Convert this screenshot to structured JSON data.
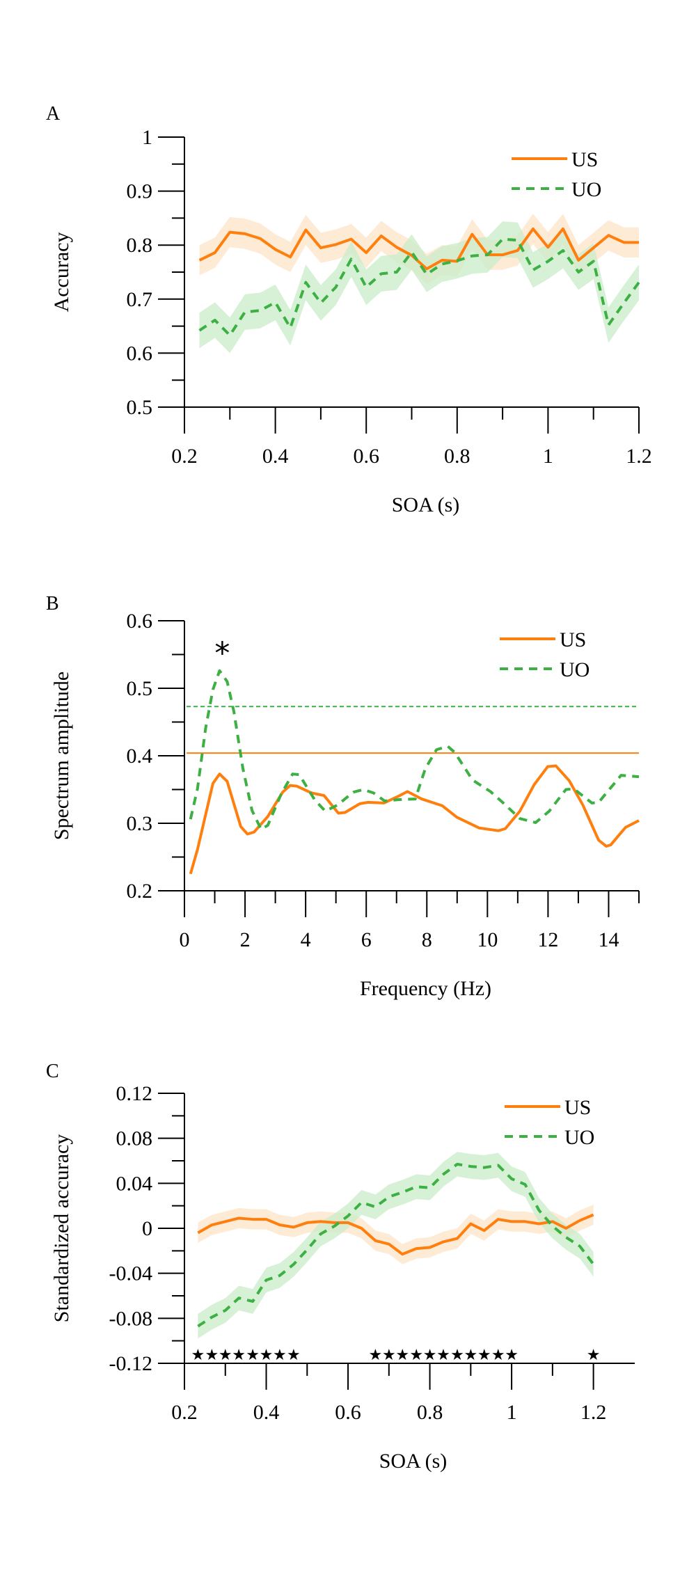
{
  "colors": {
    "US": "#ff7f0e",
    "UO": "#3cb043",
    "US_band": "#fde4c8",
    "UO_band": "#c9ecc9"
  },
  "chart_data": [
    {
      "panel": "A",
      "type": "line",
      "title": "",
      "xlabel": "SOA (s)",
      "ylabel": "Accuracy",
      "xlim": [
        0.2,
        1.2
      ],
      "ylim": [
        0.5,
        1.0
      ],
      "xticks": [
        0.2,
        0.3,
        0.4,
        0.5,
        0.6,
        0.7,
        0.8,
        0.9,
        1.0,
        1.1,
        1.2
      ],
      "xtick_labels": [
        "0.2",
        "",
        "0.4",
        "",
        "0.6",
        "",
        "0.8",
        "",
        "1",
        "",
        "1.2"
      ],
      "yticks": [
        0.5,
        0.55,
        0.6,
        0.65,
        0.7,
        0.75,
        0.8,
        0.85,
        0.9,
        0.95,
        1.0
      ],
      "ytick_labels": [
        "0.5",
        "",
        "0.6",
        "",
        "0.7",
        "",
        "0.8",
        "",
        "0.9",
        "",
        "1"
      ],
      "legend": {
        "position": "top-right",
        "entries": [
          "US",
          "UO"
        ]
      },
      "grid": false,
      "x": [
        0.233,
        0.267,
        0.3,
        0.333,
        0.367,
        0.4,
        0.433,
        0.467,
        0.5,
        0.533,
        0.567,
        0.6,
        0.633,
        0.667,
        0.7,
        0.733,
        0.767,
        0.8,
        0.833,
        0.867,
        0.9,
        0.933,
        0.967,
        1.0,
        1.033,
        1.067,
        1.1,
        1.133,
        1.167,
        1.2
      ],
      "series": [
        {
          "name": "US",
          "style": "solid",
          "band_halfwidth": 0.028,
          "values": [
            0.772,
            0.786,
            0.824,
            0.821,
            0.812,
            0.792,
            0.778,
            0.828,
            0.795,
            0.801,
            0.811,
            0.786,
            0.817,
            0.796,
            0.781,
            0.756,
            0.772,
            0.77,
            0.82,
            0.782,
            0.782,
            0.79,
            0.83,
            0.796,
            0.83,
            0.772,
            0.795,
            0.818,
            0.805,
            0.805
          ]
        },
        {
          "name": "UO",
          "style": "dashed",
          "band_halfwidth": 0.033,
          "values": [
            0.642,
            0.661,
            0.633,
            0.676,
            0.679,
            0.694,
            0.647,
            0.731,
            0.693,
            0.722,
            0.774,
            0.722,
            0.747,
            0.75,
            0.787,
            0.746,
            0.765,
            0.771,
            0.78,
            0.782,
            0.811,
            0.809,
            0.754,
            0.77,
            0.79,
            0.75,
            0.77,
            0.652,
            0.693,
            0.731
          ]
        }
      ]
    },
    {
      "panel": "B",
      "type": "line",
      "title": "",
      "xlabel": "Frequency (Hz)",
      "ylabel": "Spectrum amplitude",
      "xlim": [
        0,
        15
      ],
      "ylim": [
        0.2,
        0.6
      ],
      "xticks": [
        0,
        1,
        2,
        3,
        4,
        5,
        6,
        7,
        8,
        9,
        10,
        11,
        12,
        13,
        14,
        15
      ],
      "xtick_labels": [
        "0",
        "",
        "2",
        "",
        "4",
        "",
        "6",
        "",
        "8",
        "",
        "10",
        "",
        "12",
        "",
        "14",
        ""
      ],
      "yticks": [
        0.2,
        0.25,
        0.3,
        0.35,
        0.4,
        0.45,
        0.5,
        0.55,
        0.6
      ],
      "ytick_labels": [
        "0.2",
        "",
        "0.3",
        "",
        "0.4",
        "",
        "0.5",
        "",
        "0.6"
      ],
      "legend": {
        "position": "top-right",
        "entries": [
          "US",
          "UO"
        ]
      },
      "grid": false,
      "annotations": [
        {
          "text": "*",
          "x": 1.25,
          "y": 0.555
        }
      ],
      "thresholds": [
        {
          "name": "US",
          "value": 0.404,
          "style": "solid"
        },
        {
          "name": "UO",
          "value": 0.473,
          "style": "dotted"
        }
      ],
      "series": [
        {
          "name": "US",
          "style": "solid",
          "x": [
            0.2,
            0.43,
            0.94,
            1.16,
            1.41,
            1.86,
            2.08,
            2.3,
            2.75,
            3.24,
            3.49,
            3.71,
            4.19,
            4.61,
            5.08,
            5.3,
            5.79,
            6.05,
            6.58,
            7.06,
            7.36,
            7.83,
            8.51,
            8.99,
            9.73,
            10.36,
            10.59,
            11.07,
            11.54,
            11.99,
            12.26,
            12.7,
            13.15,
            13.67,
            13.92,
            14.07,
            14.56,
            15.0
          ],
          "values": [
            0.225,
            0.261,
            0.359,
            0.373,
            0.362,
            0.295,
            0.284,
            0.287,
            0.31,
            0.346,
            0.356,
            0.355,
            0.345,
            0.341,
            0.315,
            0.316,
            0.329,
            0.331,
            0.33,
            0.34,
            0.347,
            0.336,
            0.326,
            0.309,
            0.293,
            0.289,
            0.292,
            0.318,
            0.357,
            0.384,
            0.385,
            0.363,
            0.327,
            0.275,
            0.266,
            0.268,
            0.294,
            0.304
          ]
        },
        {
          "name": "UO",
          "style": "dashed",
          "x": [
            0.2,
            0.43,
            0.7,
            0.94,
            1.16,
            1.41,
            1.63,
            1.93,
            2.23,
            2.53,
            2.75,
            3.19,
            3.57,
            3.79,
            4.31,
            4.65,
            5.05,
            5.57,
            5.9,
            6.24,
            6.61,
            7.06,
            7.62,
            7.95,
            8.32,
            8.69,
            8.92,
            9.51,
            10.1,
            10.55,
            11.07,
            11.59,
            12.04,
            12.59,
            12.85,
            13.45,
            13.67,
            14.41,
            15.0
          ],
          "values": [
            0.306,
            0.351,
            0.441,
            0.498,
            0.526,
            0.51,
            0.466,
            0.381,
            0.319,
            0.291,
            0.297,
            0.343,
            0.373,
            0.372,
            0.334,
            0.318,
            0.327,
            0.346,
            0.35,
            0.345,
            0.333,
            0.335,
            0.336,
            0.381,
            0.409,
            0.414,
            0.405,
            0.364,
            0.347,
            0.329,
            0.307,
            0.301,
            0.318,
            0.35,
            0.351,
            0.33,
            0.331,
            0.371,
            0.369
          ]
        }
      ]
    },
    {
      "panel": "C",
      "type": "line",
      "title": "",
      "xlabel": "SOA (s)",
      "ylabel": "Standardized accuracy",
      "xlim": [
        0.2,
        1.25
      ],
      "ylim": [
        -0.12,
        0.12
      ],
      "xticks": [
        0.2,
        0.3,
        0.4,
        0.5,
        0.6,
        0.7,
        0.8,
        0.9,
        1.0,
        1.1,
        1.2
      ],
      "xtick_labels": [
        "0.2",
        "",
        "0.4",
        "",
        "0.6",
        "",
        "0.8",
        "",
        "1",
        "",
        "1.2"
      ],
      "yticks": [
        -0.12,
        -0.1,
        -0.08,
        -0.06,
        -0.04,
        -0.02,
        0,
        0.02,
        0.04,
        0.06,
        0.08,
        0.1,
        0.12
      ],
      "ytick_labels": [
        "-0.12",
        "",
        "-0.08",
        "",
        "-0.04",
        "",
        "0",
        "",
        "0.04",
        "",
        "0.08",
        "",
        "0.12"
      ],
      "legend": {
        "position": "top-right",
        "entries": [
          "US",
          "UO"
        ]
      },
      "grid": false,
      "significance_marker": "★",
      "significance_y": -0.112,
      "significant_x": [
        0.233,
        0.267,
        0.3,
        0.333,
        0.367,
        0.4,
        0.433,
        0.467,
        0.667,
        0.7,
        0.733,
        0.767,
        0.8,
        0.833,
        0.867,
        0.9,
        0.933,
        0.967,
        1.0,
        1.2
      ],
      "x": [
        0.233,
        0.267,
        0.3,
        0.333,
        0.367,
        0.4,
        0.433,
        0.467,
        0.5,
        0.533,
        0.567,
        0.6,
        0.633,
        0.667,
        0.7,
        0.733,
        0.767,
        0.8,
        0.833,
        0.867,
        0.9,
        0.933,
        0.967,
        1.0,
        1.033,
        1.067,
        1.1,
        1.133,
        1.167,
        1.2
      ],
      "series": [
        {
          "name": "US",
          "style": "solid",
          "band_halfwidth": 0.009,
          "values": [
            -0.004,
            0.003,
            0.006,
            0.009,
            0.008,
            0.008,
            0.003,
            0.001,
            0.005,
            0.006,
            0.005,
            0.005,
            0.0,
            -0.011,
            -0.014,
            -0.023,
            -0.018,
            -0.017,
            -0.012,
            -0.009,
            0.004,
            -0.002,
            0.008,
            0.006,
            0.006,
            0.004,
            0.006,
            0.0,
            0.007,
            0.012
          ]
        },
        {
          "name": "UO",
          "style": "dashed",
          "band_halfwidth": 0.011,
          "values": [
            -0.087,
            -0.079,
            -0.073,
            -0.062,
            -0.065,
            -0.046,
            -0.042,
            -0.032,
            -0.019,
            -0.005,
            0.002,
            0.011,
            0.023,
            0.019,
            0.028,
            0.032,
            0.037,
            0.036,
            0.048,
            0.057,
            0.055,
            0.054,
            0.056,
            0.044,
            0.039,
            0.016,
            0.002,
            -0.008,
            -0.016,
            -0.032
          ]
        }
      ]
    }
  ]
}
